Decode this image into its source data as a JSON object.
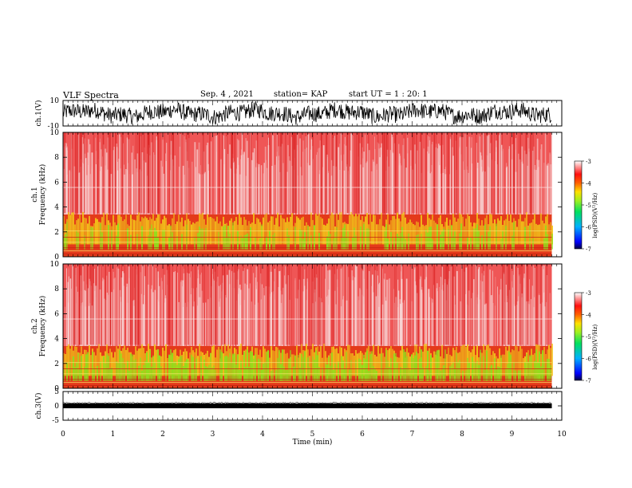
{
  "header": {
    "title": "VLF Spectra",
    "date": "Sep. 4 , 2021",
    "station": "station= KAP",
    "start_ut": "start UT =   1 : 20: 1"
  },
  "chart_data": [
    {
      "type": "line",
      "panel": "ch1-waveform",
      "ylabel": "ch.1(V)",
      "ylim": [
        -10,
        10
      ],
      "yticks": [
        "10",
        "-10"
      ],
      "xlim": [
        0,
        10
      ],
      "x_visible_end": 9.8,
      "series_color": "#000000"
    },
    {
      "type": "heatmap",
      "panel": "ch1-spectrogram",
      "ylabel": "ch.1 Frequency (kHz)",
      "ylim": [
        0,
        10
      ],
      "yticks": [
        "0",
        "2",
        "4",
        "6",
        "8",
        "10"
      ],
      "xlim": [
        0,
        10
      ],
      "x_visible_end": 9.8,
      "colorbar": {
        "label": "log(PSD)(V²/Hz)",
        "range": [
          -7,
          -3
        ],
        "ticks": [
          "-3",
          "-4",
          "-5",
          "-6",
          "-7"
        ]
      }
    },
    {
      "type": "heatmap",
      "panel": "ch2-spectrogram",
      "ylabel": "ch.2 Frequency (kHz)",
      "ylim": [
        0,
        10
      ],
      "yticks": [
        "0",
        "2",
        "4",
        "6",
        "8",
        "10"
      ],
      "xlim": [
        0,
        10
      ],
      "x_visible_end": 9.8,
      "colorbar": {
        "label": "log(PSD)(V²/Hz)",
        "range": [
          -7,
          -3
        ],
        "ticks": [
          "-3",
          "-4",
          "-5",
          "-6",
          "-7"
        ]
      }
    },
    {
      "type": "line",
      "panel": "ch3-waveform",
      "ylabel": "ch.3(V)",
      "ylim": [
        -5,
        5
      ],
      "yticks": [
        "5",
        "0",
        "-5"
      ],
      "xlim": [
        0,
        10
      ],
      "x_visible_end": 9.8,
      "series_color": "#000000"
    }
  ],
  "xaxis": {
    "label": "Time  (min)",
    "ticks": [
      "0",
      "1",
      "2",
      "3",
      "4",
      "5",
      "6",
      "7",
      "8",
      "9",
      "10"
    ]
  }
}
